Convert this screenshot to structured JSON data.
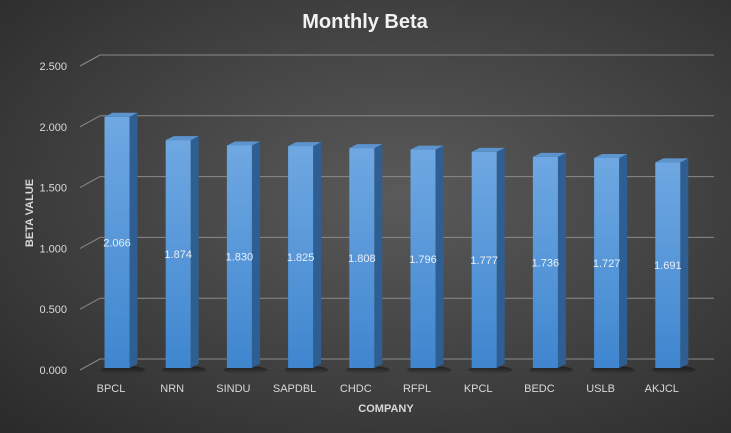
{
  "chart_data": {
    "type": "bar",
    "title": "Monthly Beta",
    "xlabel": "COMPANY",
    "ylabel": "BETA VALUE",
    "ylim": [
      0,
      2.5
    ],
    "yticks": [
      "0.000",
      "0.500",
      "1.000",
      "1.500",
      "2.000",
      "2.500"
    ],
    "grid": true,
    "style": "3d-column",
    "bar_color": "#4a8fd6",
    "categories": [
      "BPCL",
      "NRN",
      "SINDU",
      "SAPDBL",
      "CHDC",
      "RFPL",
      "KPCL",
      "BEDC",
      "USLB",
      "AKJCL"
    ],
    "values": [
      2.066,
      1.874,
      1.83,
      1.825,
      1.808,
      1.796,
      1.777,
      1.736,
      1.727,
      1.691
    ],
    "data_labels": [
      "2.066",
      "1.874",
      "1.830",
      "1.825",
      "1.808",
      "1.796",
      "1.777",
      "1.736",
      "1.727",
      "1.691"
    ]
  }
}
